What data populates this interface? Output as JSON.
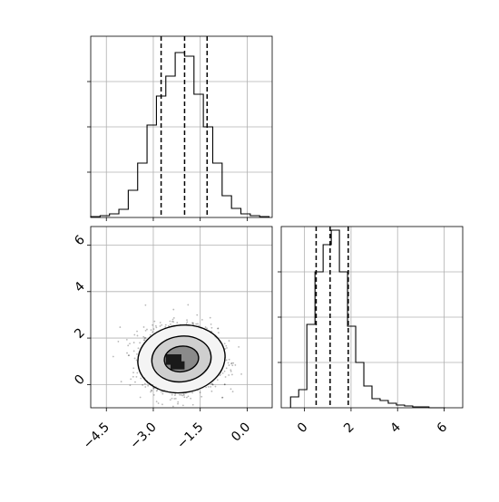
{
  "chart_data": [
    {
      "panel": "histogram-x",
      "type": "bar",
      "title": "",
      "xlabel": "",
      "ylabel": "",
      "xlim": [
        -5.0,
        0.8
      ],
      "ylim": [
        0,
        1.0
      ],
      "grid": true,
      "bin_edges": [
        -5.0,
        -4.7,
        -4.4,
        -4.1,
        -3.8,
        -3.5,
        -3.2,
        -2.9,
        -2.6,
        -2.3,
        -2.0,
        -1.7,
        -1.4,
        -1.1,
        -0.8,
        -0.5,
        -0.2,
        0.1,
        0.4,
        0.7
      ],
      "counts": [
        0.005,
        0.01,
        0.02,
        0.045,
        0.15,
        0.3,
        0.51,
        0.67,
        0.78,
        0.91,
        0.89,
        0.68,
        0.5,
        0.3,
        0.12,
        0.05,
        0.02,
        0.01,
        0.005
      ],
      "quantiles": [
        -2.75,
        -2.0,
        -1.28
      ],
      "xticks": [
        -4.5,
        -3.0,
        -1.5,
        0.0
      ],
      "xticklabels": [
        "",
        "",
        "",
        ""
      ],
      "yticks": [
        0.25,
        0.5,
        0.75
      ],
      "yticklabels": [
        "",
        "",
        ""
      ]
    },
    {
      "panel": "scatter-2d",
      "type": "scatter",
      "title": "",
      "xlabel": "",
      "ylabel": "",
      "xlim": [
        -5.0,
        0.8
      ],
      "ylim": [
        -1.0,
        6.8
      ],
      "grid": true,
      "center": [
        -2.1,
        1.1
      ],
      "spread": [
        0.58,
        0.65
      ],
      "contours": [
        {
          "level": "inner",
          "rx": 0.55,
          "ry": 0.55
        },
        {
          "level": "middle",
          "rx": 0.95,
          "ry": 0.98
        },
        {
          "level": "outer",
          "rx": 1.4,
          "ry": 1.45
        }
      ],
      "xticks": [
        -4.5,
        -3.0,
        -1.5,
        0.0
      ],
      "xticklabels": [
        "−4.5",
        "−3.0",
        "−1.5",
        "0.0"
      ],
      "yticks": [
        0,
        2,
        4,
        6
      ],
      "yticklabels": [
        "0",
        "2",
        "4",
        "6"
      ]
    },
    {
      "panel": "histogram-y",
      "type": "bar",
      "title": "",
      "xlabel": "",
      "ylabel": "",
      "xlim": [
        -1.0,
        6.8
      ],
      "ylim": [
        0,
        1.0
      ],
      "grid": true,
      "bin_edges": [
        -0.6,
        -0.25,
        0.1,
        0.45,
        0.8,
        1.15,
        1.5,
        1.85,
        2.2,
        2.55,
        2.9,
        3.25,
        3.6,
        3.95,
        4.3,
        4.65,
        5.0,
        5.35,
        5.7,
        6.05
      ],
      "counts": [
        0.06,
        0.1,
        0.46,
        0.75,
        0.9,
        0.98,
        0.75,
        0.45,
        0.25,
        0.12,
        0.05,
        0.04,
        0.025,
        0.015,
        0.01,
        0.005,
        0.005,
        0.0,
        0.0
      ],
      "quantiles": [
        0.5,
        1.1,
        1.88
      ],
      "xticks": [
        0,
        2,
        4,
        6
      ],
      "xticklabels": [
        "0",
        "2",
        "4",
        "6"
      ],
      "yticks": [
        0.25,
        0.5,
        0.75
      ],
      "yticklabels": [
        "",
        "",
        ""
      ]
    }
  ]
}
